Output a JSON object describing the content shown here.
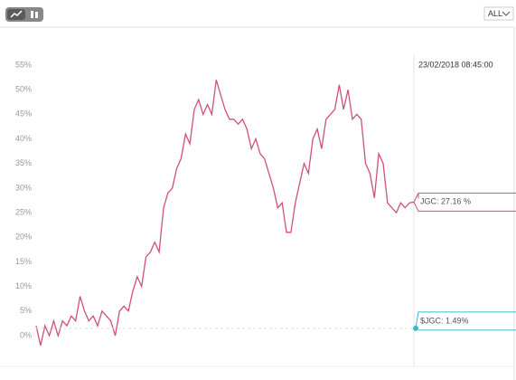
{
  "chart_data": {
    "type": "line",
    "range_selector": "ALL",
    "cursor_time": "23/02/2018 08:45:00",
    "ylim": [
      -3,
      57
    ],
    "yticks": [
      {
        "value": 0,
        "label": "0%"
      },
      {
        "value": 5,
        "label": "5%"
      },
      {
        "value": 10,
        "label": "10%"
      },
      {
        "value": 15,
        "label": "15%"
      },
      {
        "value": 20,
        "label": "20%"
      },
      {
        "value": 25,
        "label": "25%"
      },
      {
        "value": 30,
        "label": "30%"
      },
      {
        "value": 35,
        "label": "35%"
      },
      {
        "value": 40,
        "label": "40%"
      },
      {
        "value": 45,
        "label": "45%"
      },
      {
        "value": 50,
        "label": "50%"
      },
      {
        "value": 55,
        "label": "55%"
      }
    ],
    "series": [
      {
        "color": "#d0507a",
        "values": [
          2,
          -2,
          2,
          0,
          3,
          0,
          3,
          2,
          4,
          3,
          8,
          5,
          3,
          4,
          2,
          5,
          4,
          3,
          0,
          5,
          6,
          5,
          9,
          12,
          10,
          16,
          17,
          19,
          17,
          26,
          29,
          30,
          34,
          36,
          41,
          39,
          46,
          48,
          45,
          47,
          45,
          52,
          49,
          46,
          44,
          44,
          43,
          44,
          42,
          38,
          40,
          37,
          36,
          33,
          30,
          26,
          27,
          21,
          21,
          27,
          31,
          35,
          33,
          40,
          42,
          38,
          44,
          45,
          46,
          51,
          46,
          50,
          44,
          45,
          44,
          35,
          33,
          28,
          37,
          35,
          27,
          26,
          25,
          27,
          26,
          27,
          27.16
        ],
        "last_label": "JGC: 27.16 %"
      },
      {
        "color": "#3fb6d0",
        "values": [
          1.49
        ],
        "value_labels": [
          "$JGC: 1.49%"
        ]
      }
    ]
  }
}
